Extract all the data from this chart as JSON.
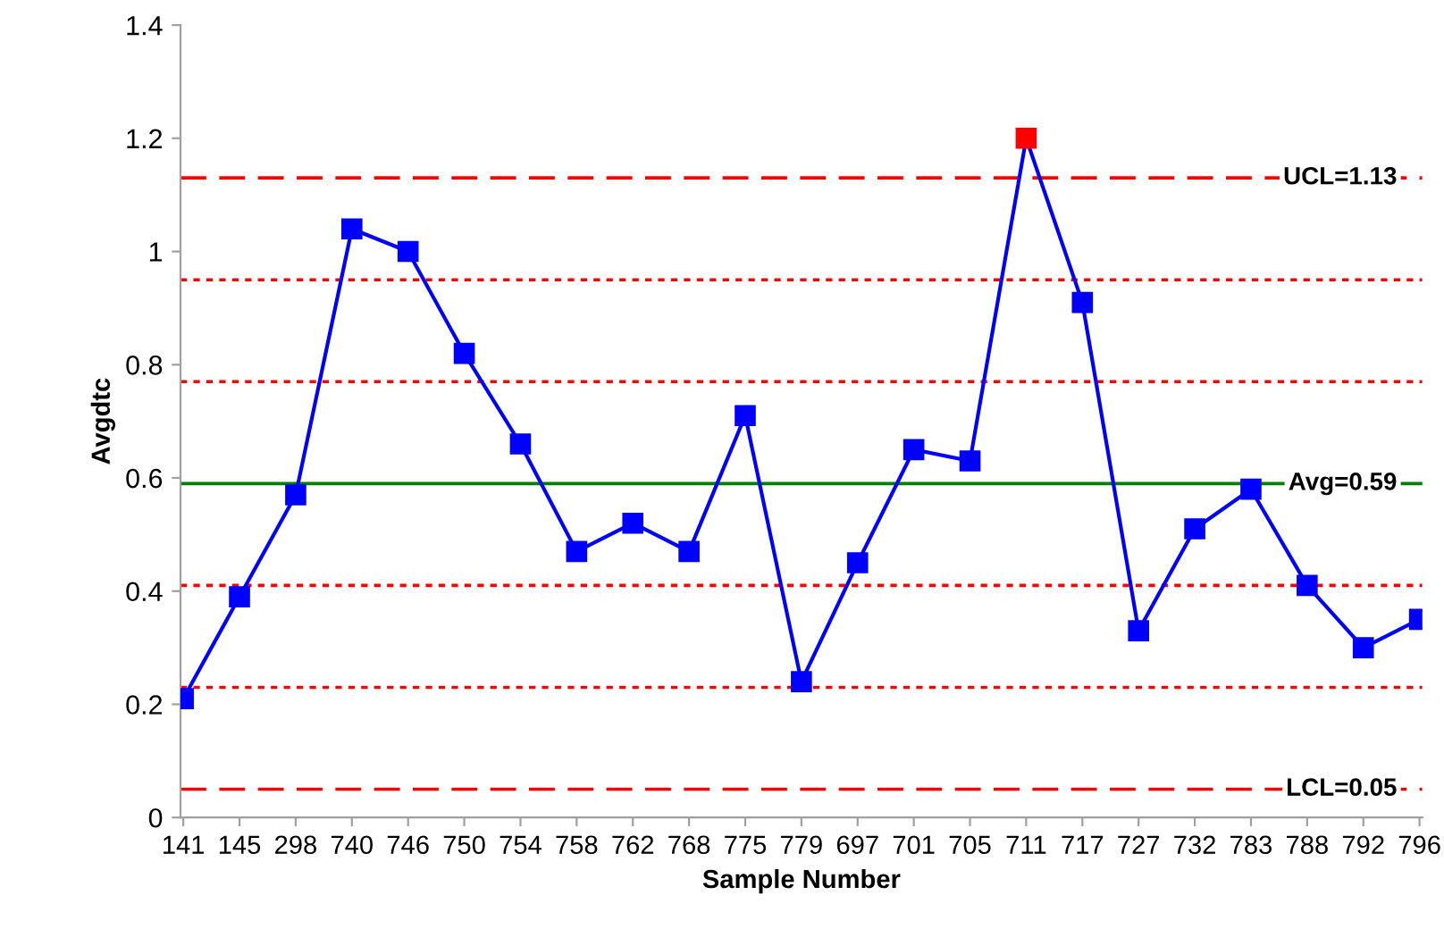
{
  "chart_data": {
    "type": "line",
    "xlabel": "Sample Number",
    "ylabel": "Avgdtc",
    "categories": [
      "141",
      "145",
      "298",
      "740",
      "746",
      "750",
      "754",
      "758",
      "762",
      "768",
      "775",
      "779",
      "697",
      "701",
      "705",
      "711",
      "717",
      "727",
      "732",
      "783",
      "788",
      "792",
      "796"
    ],
    "series": [
      {
        "color": "#0000ff",
        "values": [
          0.21,
          0.39,
          0.57,
          1.04,
          1.0,
          0.82,
          0.66,
          0.47,
          0.52,
          0.47,
          0.71,
          0.24,
          0.45,
          0.65,
          0.63,
          1.2,
          0.91,
          0.33,
          0.51,
          0.58,
          0.41,
          0.3,
          0.35
        ],
        "colors": [
          "#0000ff",
          "#0000ff",
          "#0000ff",
          "#0000ff",
          "#0000ff",
          "#0000ff",
          "#0000ff",
          "#0000ff",
          "#0000ff",
          "#0000ff",
          "#0000ff",
          "#0000ff",
          "#0000ff",
          "#0000ff",
          "#0000ff",
          "#ff0000",
          "#0000ff",
          "#0000ff",
          "#0000ff",
          "#0000ff",
          "#0000ff",
          "#0000ff",
          "#0000ff"
        ]
      }
    ],
    "marker": "square",
    "line_style": "solid",
    "ylim": [
      0,
      1.4
    ],
    "yticks": [
      0,
      0.2,
      0.4,
      0.6,
      0.8,
      1,
      1.2,
      1.4
    ],
    "grid": false,
    "legend": false,
    "ref_lines": [
      {
        "axis": "y",
        "value": 1.13,
        "label": "UCL=1.13",
        "color": "#ff0000",
        "line_style": "dashed"
      },
      {
        "axis": "y",
        "value": 0.95,
        "label": null,
        "color": "#ff0000",
        "line_style": "dotted"
      },
      {
        "axis": "y",
        "value": 0.77,
        "label": null,
        "color": "#ff0000",
        "line_style": "dotted"
      },
      {
        "axis": "y",
        "value": 0.59,
        "label": "Avg=0.59",
        "color": "#008000",
        "line_style": "solid"
      },
      {
        "axis": "y",
        "value": 0.41,
        "label": null,
        "color": "#ff0000",
        "line_style": "dotted"
      },
      {
        "axis": "y",
        "value": 0.23,
        "label": null,
        "color": "#ff0000",
        "line_style": "dotted"
      },
      {
        "axis": "y",
        "value": 0.05,
        "label": "LCL=0.05",
        "color": "#ff0000",
        "line_style": "dashed"
      }
    ]
  }
}
